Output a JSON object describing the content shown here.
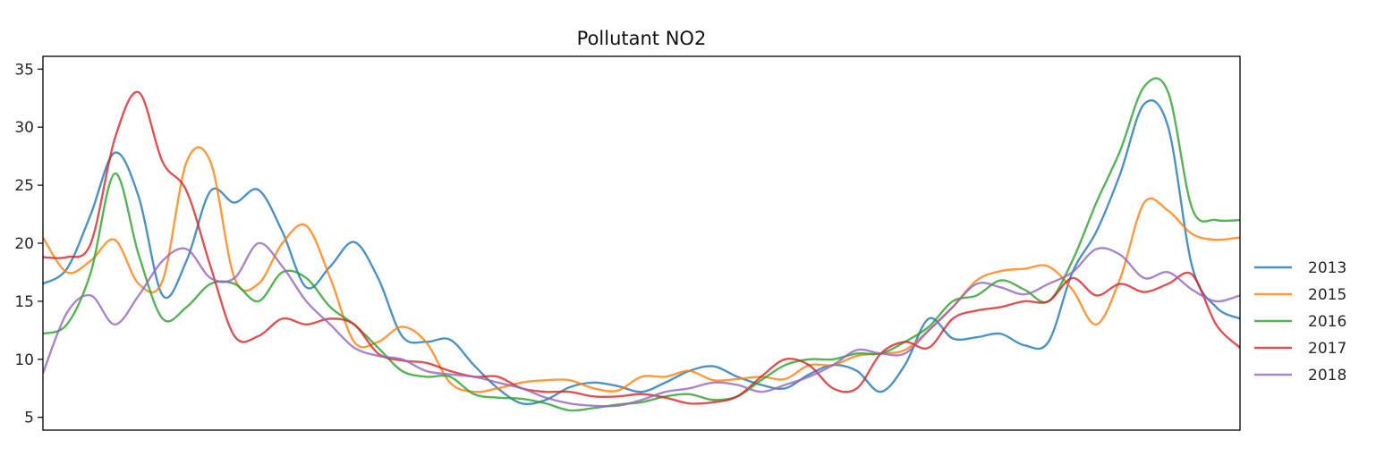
{
  "chart_data": {
    "type": "line",
    "title": "Pollutant NO2",
    "xlabel": "",
    "ylabel": "",
    "x": [
      0,
      2,
      4,
      6,
      8,
      10,
      12,
      14,
      16,
      18,
      20,
      22,
      24,
      26,
      28,
      30,
      32,
      34,
      36,
      38,
      40,
      42,
      44,
      46,
      48,
      50,
      52,
      54,
      56,
      58,
      60,
      62,
      64,
      66,
      68,
      70,
      72,
      74,
      76,
      78,
      80,
      82,
      84,
      86,
      88,
      90,
      92,
      94,
      96,
      98,
      100
    ],
    "xlim": [
      0,
      100
    ],
    "ylim": [
      3.9,
      36.1
    ],
    "yticks": [
      5,
      10,
      15,
      20,
      25,
      30,
      35
    ],
    "grid": false,
    "legend_position": "right",
    "series": [
      {
        "name": "2013",
        "color": "#1f77b4",
        "values": [
          16.5,
          17.8,
          22.5,
          27.8,
          24.0,
          15.5,
          18.5,
          24.5,
          23.5,
          24.6,
          21.0,
          16.2,
          18.0,
          20.1,
          17.0,
          12.0,
          11.5,
          11.7,
          9.5,
          7.5,
          6.2,
          6.5,
          7.6,
          8.0,
          7.7,
          7.2,
          8.0,
          9.0,
          9.4,
          8.5,
          7.8,
          7.5,
          8.7,
          9.5,
          9.0,
          7.2,
          9.5,
          13.5,
          11.8,
          11.9,
          12.2,
          11.2,
          11.5,
          17.5,
          21.0,
          26.0,
          32.0,
          30.0,
          18.0,
          14.5,
          13.5
        ]
      },
      {
        "name": "2015",
        "color": "#ff7f0e",
        "values": [
          20.5,
          17.5,
          18.5,
          20.3,
          16.5,
          16.8,
          27.0,
          27.0,
          17.0,
          16.5,
          20.0,
          21.5,
          17.0,
          11.5,
          11.5,
          12.8,
          11.5,
          8.0,
          7.2,
          7.5,
          8.0,
          8.2,
          8.2,
          7.5,
          7.3,
          8.5,
          8.5,
          9.0,
          8.2,
          8.3,
          8.5,
          8.3,
          9.5,
          9.5,
          10.3,
          10.5,
          10.8,
          12.5,
          14.5,
          16.8,
          17.6,
          17.8,
          18.0,
          16.0,
          13.0,
          17.0,
          23.5,
          22.8,
          20.8,
          20.3,
          20.5
        ]
      },
      {
        "name": "2016",
        "color": "#2ca02c",
        "values": [
          12.2,
          13.0,
          17.5,
          26.0,
          19.0,
          13.5,
          14.5,
          16.5,
          16.5,
          15.0,
          17.5,
          17.0,
          14.5,
          13.0,
          11.0,
          9.0,
          8.5,
          8.5,
          7.0,
          6.7,
          6.6,
          6.2,
          5.6,
          5.8,
          6.1,
          6.3,
          6.8,
          7.0,
          6.5,
          6.8,
          8.2,
          9.5,
          10.0,
          10.0,
          10.5,
          10.5,
          11.5,
          12.8,
          15.0,
          15.5,
          16.8,
          16.0,
          15.0,
          18.5,
          23.5,
          28.0,
          33.5,
          33.0,
          23.0,
          22.0,
          22.0
        ]
      },
      {
        "name": "2017",
        "color": "#d62728",
        "values": [
          18.8,
          18.8,
          20.0,
          29.0,
          33.0,
          27.0,
          24.5,
          18.0,
          12.0,
          12.0,
          13.5,
          13.0,
          13.5,
          13.0,
          10.5,
          9.9,
          9.7,
          9.0,
          8.5,
          8.5,
          7.5,
          7.2,
          7.2,
          6.8,
          6.8,
          7.0,
          6.7,
          6.2,
          6.3,
          6.8,
          8.5,
          10.0,
          9.5,
          7.5,
          7.5,
          10.5,
          11.5,
          11.0,
          13.5,
          14.2,
          14.5,
          15.0,
          15.0,
          17.0,
          15.5,
          16.5,
          15.8,
          16.5,
          17.3,
          13.0,
          11.0
        ]
      },
      {
        "name": "2018",
        "color": "#9467bd",
        "values": [
          8.8,
          14.0,
          15.5,
          13.0,
          15.5,
          18.5,
          19.5,
          17.0,
          17.0,
          20.0,
          18.0,
          15.0,
          13.0,
          11.0,
          10.3,
          10.0,
          9.0,
          8.7,
          8.5,
          8.0,
          7.5,
          6.7,
          6.2,
          6.0,
          6.0,
          6.5,
          7.2,
          7.5,
          8.0,
          7.8,
          7.2,
          7.8,
          8.5,
          9.5,
          10.8,
          10.5,
          10.5,
          12.5,
          14.5,
          16.5,
          16.2,
          15.6,
          16.5,
          17.5,
          19.5,
          19.0,
          17.0,
          17.5,
          16.0,
          15.0,
          15.5
        ]
      }
    ]
  }
}
